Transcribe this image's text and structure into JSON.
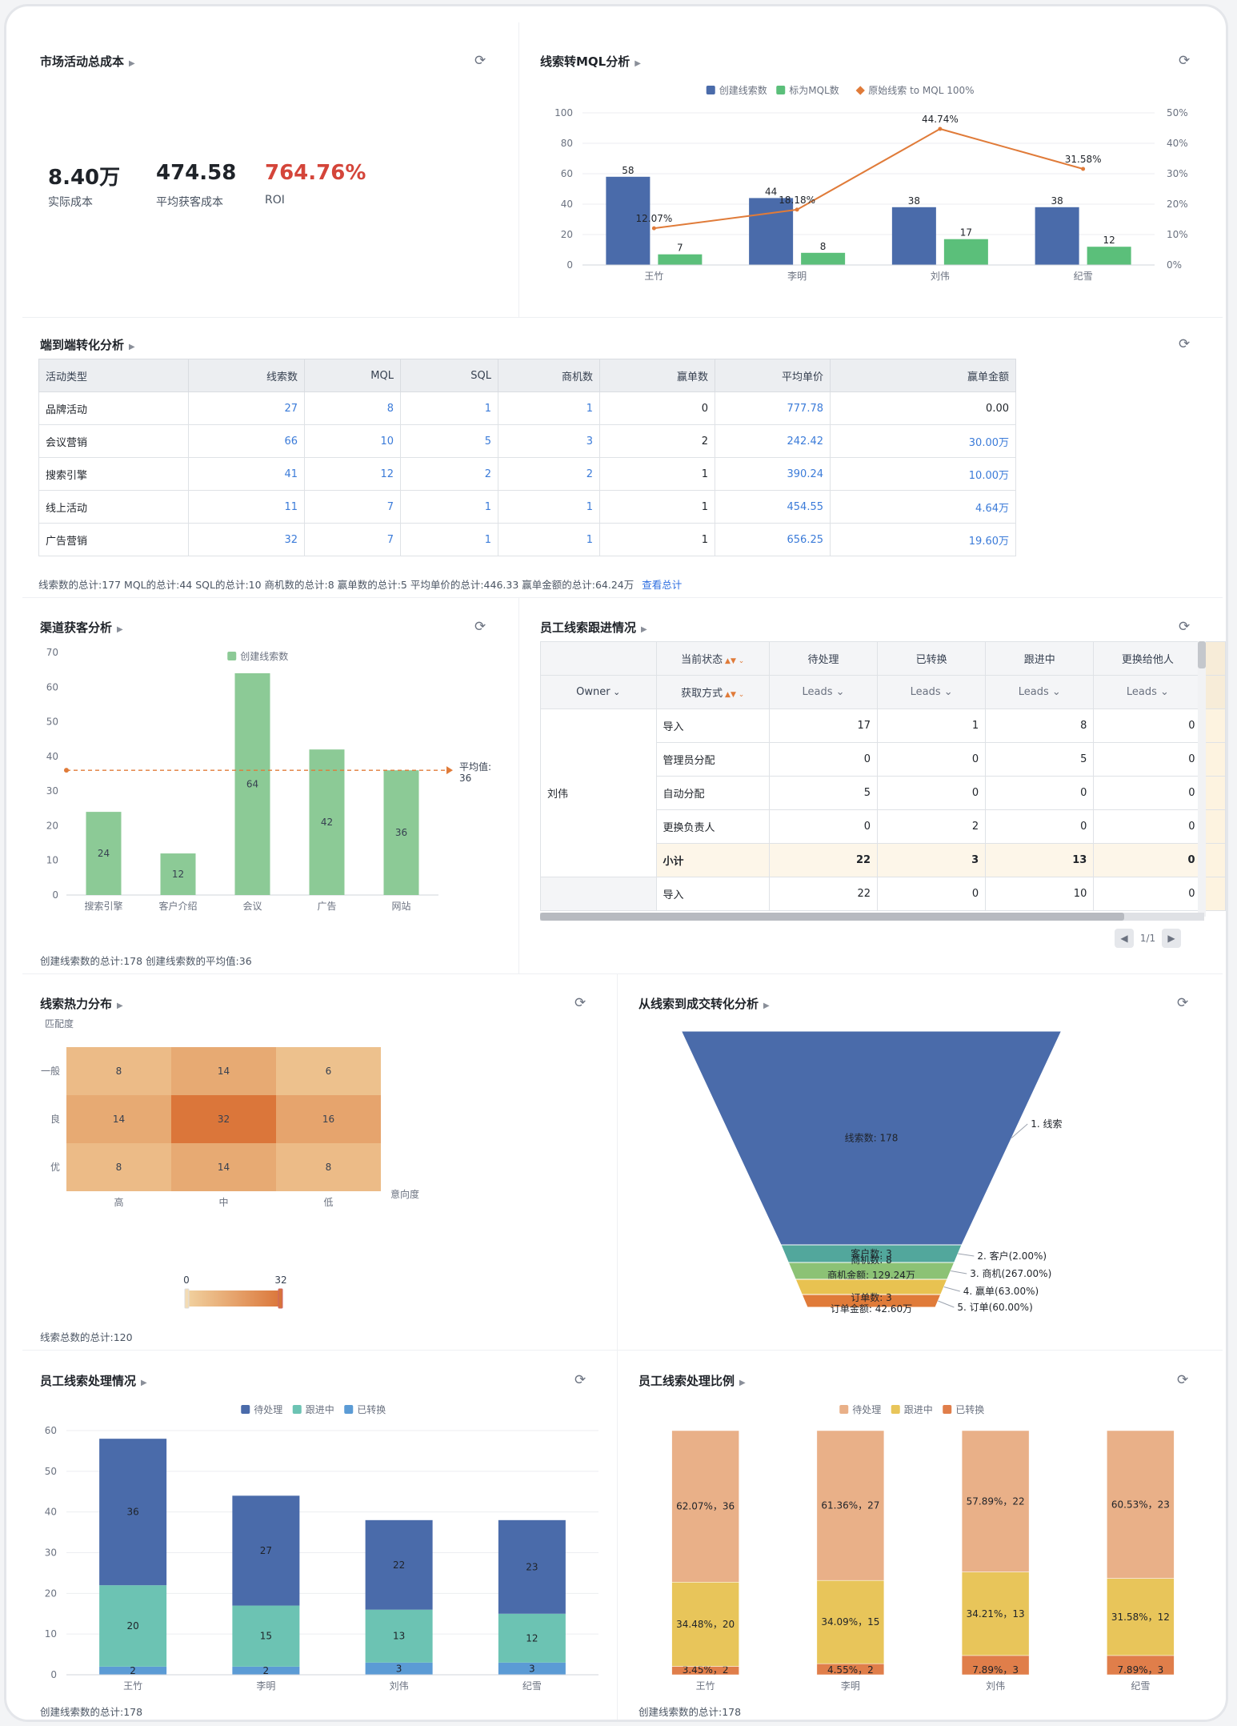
{
  "cost": {
    "title": "市场活动总成本",
    "metrics": [
      {
        "value": "8.40万",
        "label": "实际成本",
        "color": "#1f2329"
      },
      {
        "value": "474.58",
        "label": "平均获客成本",
        "color": "#1f2329"
      },
      {
        "value": "764.76%",
        "label": "ROI",
        "color": "#d4453a"
      }
    ]
  },
  "mql": {
    "title": "线索转MQL分析",
    "chart_data": {
      "type": "bar",
      "categories": [
        "王竹",
        "李明",
        "刘伟",
        "纪雪"
      ],
      "series": [
        {
          "name": "创建线索数",
          "values": [
            58,
            44,
            38,
            38
          ],
          "color": "#4a6baa"
        },
        {
          "name": "标为MQL数",
          "values": [
            7,
            8,
            17,
            12
          ],
          "color": "#5bbf7a"
        },
        {
          "name": "原始线索 to MQL 100%",
          "values": [
            12.07,
            18.18,
            44.74,
            31.58
          ],
          "labels": [
            "12.07%",
            "18.18%",
            "44.74%",
            "31.58%"
          ],
          "color": "#e07b39"
        }
      ],
      "ylim": [
        0,
        100
      ],
      "y_ticks": [
        "0",
        "20",
        "40",
        "60",
        "80",
        "100"
      ],
      "y2lim": [
        0,
        50
      ],
      "y2_ticks": [
        "0%",
        "10%",
        "20%",
        "30%",
        "40%",
        "50%"
      ],
      "legend": "top"
    }
  },
  "e2e": {
    "title": "端到端转化分析",
    "columns": [
      "活动类型",
      "线索数",
      "MQL",
      "SQL",
      "商机数",
      "赢单数",
      "平均单价",
      "赢单金额"
    ],
    "rows": [
      [
        "品牌活动",
        "27",
        "8",
        "1",
        "1",
        "0",
        "777.78",
        "0.00"
      ],
      [
        "会议营销",
        "66",
        "10",
        "5",
        "3",
        "2",
        "242.42",
        "30.00万"
      ],
      [
        "搜索引擎",
        "41",
        "12",
        "2",
        "2",
        "1",
        "390.24",
        "10.00万"
      ],
      [
        "线上活动",
        "11",
        "7",
        "1",
        "1",
        "1",
        "454.55",
        "4.64万"
      ],
      [
        "广告营销",
        "32",
        "7",
        "1",
        "1",
        "1",
        "656.25",
        "19.60万"
      ]
    ],
    "footer": "线索数的总计:177   MQL的总计:44   SQL的总计:10   商机数的总计:8   赢单数的总计:5   平均单价的总计:446.33   赢单金额的总计:64.24万",
    "footer_link": "查看总计"
  },
  "channel": {
    "title": "渠道获客分析",
    "chart_data": {
      "type": "bar",
      "categories": [
        "搜索引擎",
        "客户介绍",
        "会议",
        "广告",
        "网站"
      ],
      "series": [
        {
          "name": "创建线索数",
          "values": [
            24,
            12,
            64,
            42,
            36
          ],
          "color": "#8cca96"
        }
      ],
      "ylim": [
        0,
        70
      ],
      "y_ticks": [
        "0",
        "10",
        "20",
        "30",
        "40",
        "50",
        "60",
        "70"
      ],
      "avg": 36,
      "avg_label1": "平均值:",
      "avg_label2": "36",
      "legend": "top"
    },
    "footer": "创建线索数的总计:178   创建线索数的平均值:36"
  },
  "emp": {
    "title": "员工线索跟进情况",
    "state_label": "当前状态",
    "owner_label": "Owner",
    "method_label": "获取方式",
    "states": [
      "待处理",
      "已转换",
      "跟进中",
      "更换给他人"
    ],
    "measure": "Leads",
    "owner": "刘伟",
    "rows": [
      {
        "method": "导入",
        "values": [
          "17",
          "1",
          "8",
          "0"
        ]
      },
      {
        "method": "管理员分配",
        "values": [
          "0",
          "0",
          "5",
          "0"
        ]
      },
      {
        "method": "自动分配",
        "values": [
          "5",
          "0",
          "0",
          "0"
        ]
      },
      {
        "method": "更换负责人",
        "values": [
          "0",
          "2",
          "0",
          "0"
        ]
      },
      {
        "method": "小计",
        "values": [
          "22",
          "3",
          "13",
          "0"
        ],
        "subtotal": true
      },
      {
        "method": "导入",
        "values": [
          "22",
          "0",
          "10",
          "0"
        ]
      }
    ],
    "pager": "1/1"
  },
  "heat": {
    "title": "线索热力分布",
    "chart_data": {
      "type": "heatmap",
      "y_categories": [
        "一般",
        "良",
        "优"
      ],
      "x_categories": [
        "高",
        "中",
        "低"
      ],
      "values": [
        [
          8,
          14,
          6
        ],
        [
          14,
          32,
          16
        ],
        [
          8,
          14,
          8
        ]
      ],
      "ylabel": "匹配度",
      "xlabel": "意向度",
      "range": [
        0,
        32
      ],
      "range_labels": [
        "0",
        "32"
      ]
    },
    "footer": "线索总数的总计:120"
  },
  "funnel": {
    "title": "从线索到成交转化分析",
    "chart_data": {
      "type": "funnel",
      "stages": [
        {
          "inner": "线索数: 178",
          "inner2": "",
          "outer": "1. 线索",
          "color": "#4a6baa"
        },
        {
          "inner": "客户数: 3",
          "inner2": "",
          "outer": "2. 客户(2.00%)",
          "color": "#52a79c"
        },
        {
          "inner": "商机数: 8",
          "inner2": "商机金额: 129.24万",
          "outer": "3. 商机(267.00%)",
          "color": "#8cc275"
        },
        {
          "inner": "",
          "inner2": "",
          "outer": "4. 赢单(63.00%)",
          "color": "#e8c251"
        },
        {
          "inner": "订单数: 3",
          "inner2": "订单金额: 42.60万",
          "outer": "5. 订单(60.00%)",
          "color": "#e07b39"
        }
      ]
    }
  },
  "handle": {
    "title": "员工线索处理情况",
    "chart_data": {
      "type": "bar",
      "stacked": true,
      "categories": [
        "王竹",
        "李明",
        "刘伟",
        "纪雪"
      ],
      "series": [
        {
          "name": "待处理",
          "values": [
            36,
            27,
            22,
            23
          ],
          "color": "#4a6baa"
        },
        {
          "name": "跟进中",
          "values": [
            20,
            15,
            13,
            12
          ],
          "color": "#6cc3b3"
        },
        {
          "name": "已转换",
          "values": [
            2,
            2,
            3,
            3
          ],
          "color": "#5b9bd5"
        }
      ],
      "ylim": [
        0,
        60
      ],
      "y_ticks": [
        "0",
        "10",
        "20",
        "30",
        "40",
        "50",
        "60"
      ],
      "legend": "top"
    },
    "footer": "创建线索数的总计:178"
  },
  "ratio": {
    "title": "员工线索处理比例",
    "chart_data": {
      "type": "bar",
      "stacked": "percent",
      "categories": [
        "王竹",
        "李明",
        "刘伟",
        "纪雪"
      ],
      "series": [
        {
          "name": "待处理",
          "values": [
            36,
            27,
            22,
            23
          ],
          "labels": [
            "62.07%，36",
            "61.36%，27",
            "57.89%，22",
            "60.53%，23"
          ],
          "color": "#e9b088"
        },
        {
          "name": "跟进中",
          "values": [
            20,
            15,
            13,
            12
          ],
          "labels": [
            "34.48%，20",
            "34.09%，15",
            "34.21%，13",
            "31.58%，12"
          ],
          "color": "#e8c55a"
        },
        {
          "name": "已转换",
          "values": [
            2,
            2,
            3,
            3
          ],
          "labels": [
            "3.45%，2",
            "4.55%，2",
            "7.89%，3",
            "7.89%，3"
          ],
          "color": "#e07e4a"
        }
      ],
      "legend": "top"
    },
    "footer": "创建线索数的总计:178"
  }
}
